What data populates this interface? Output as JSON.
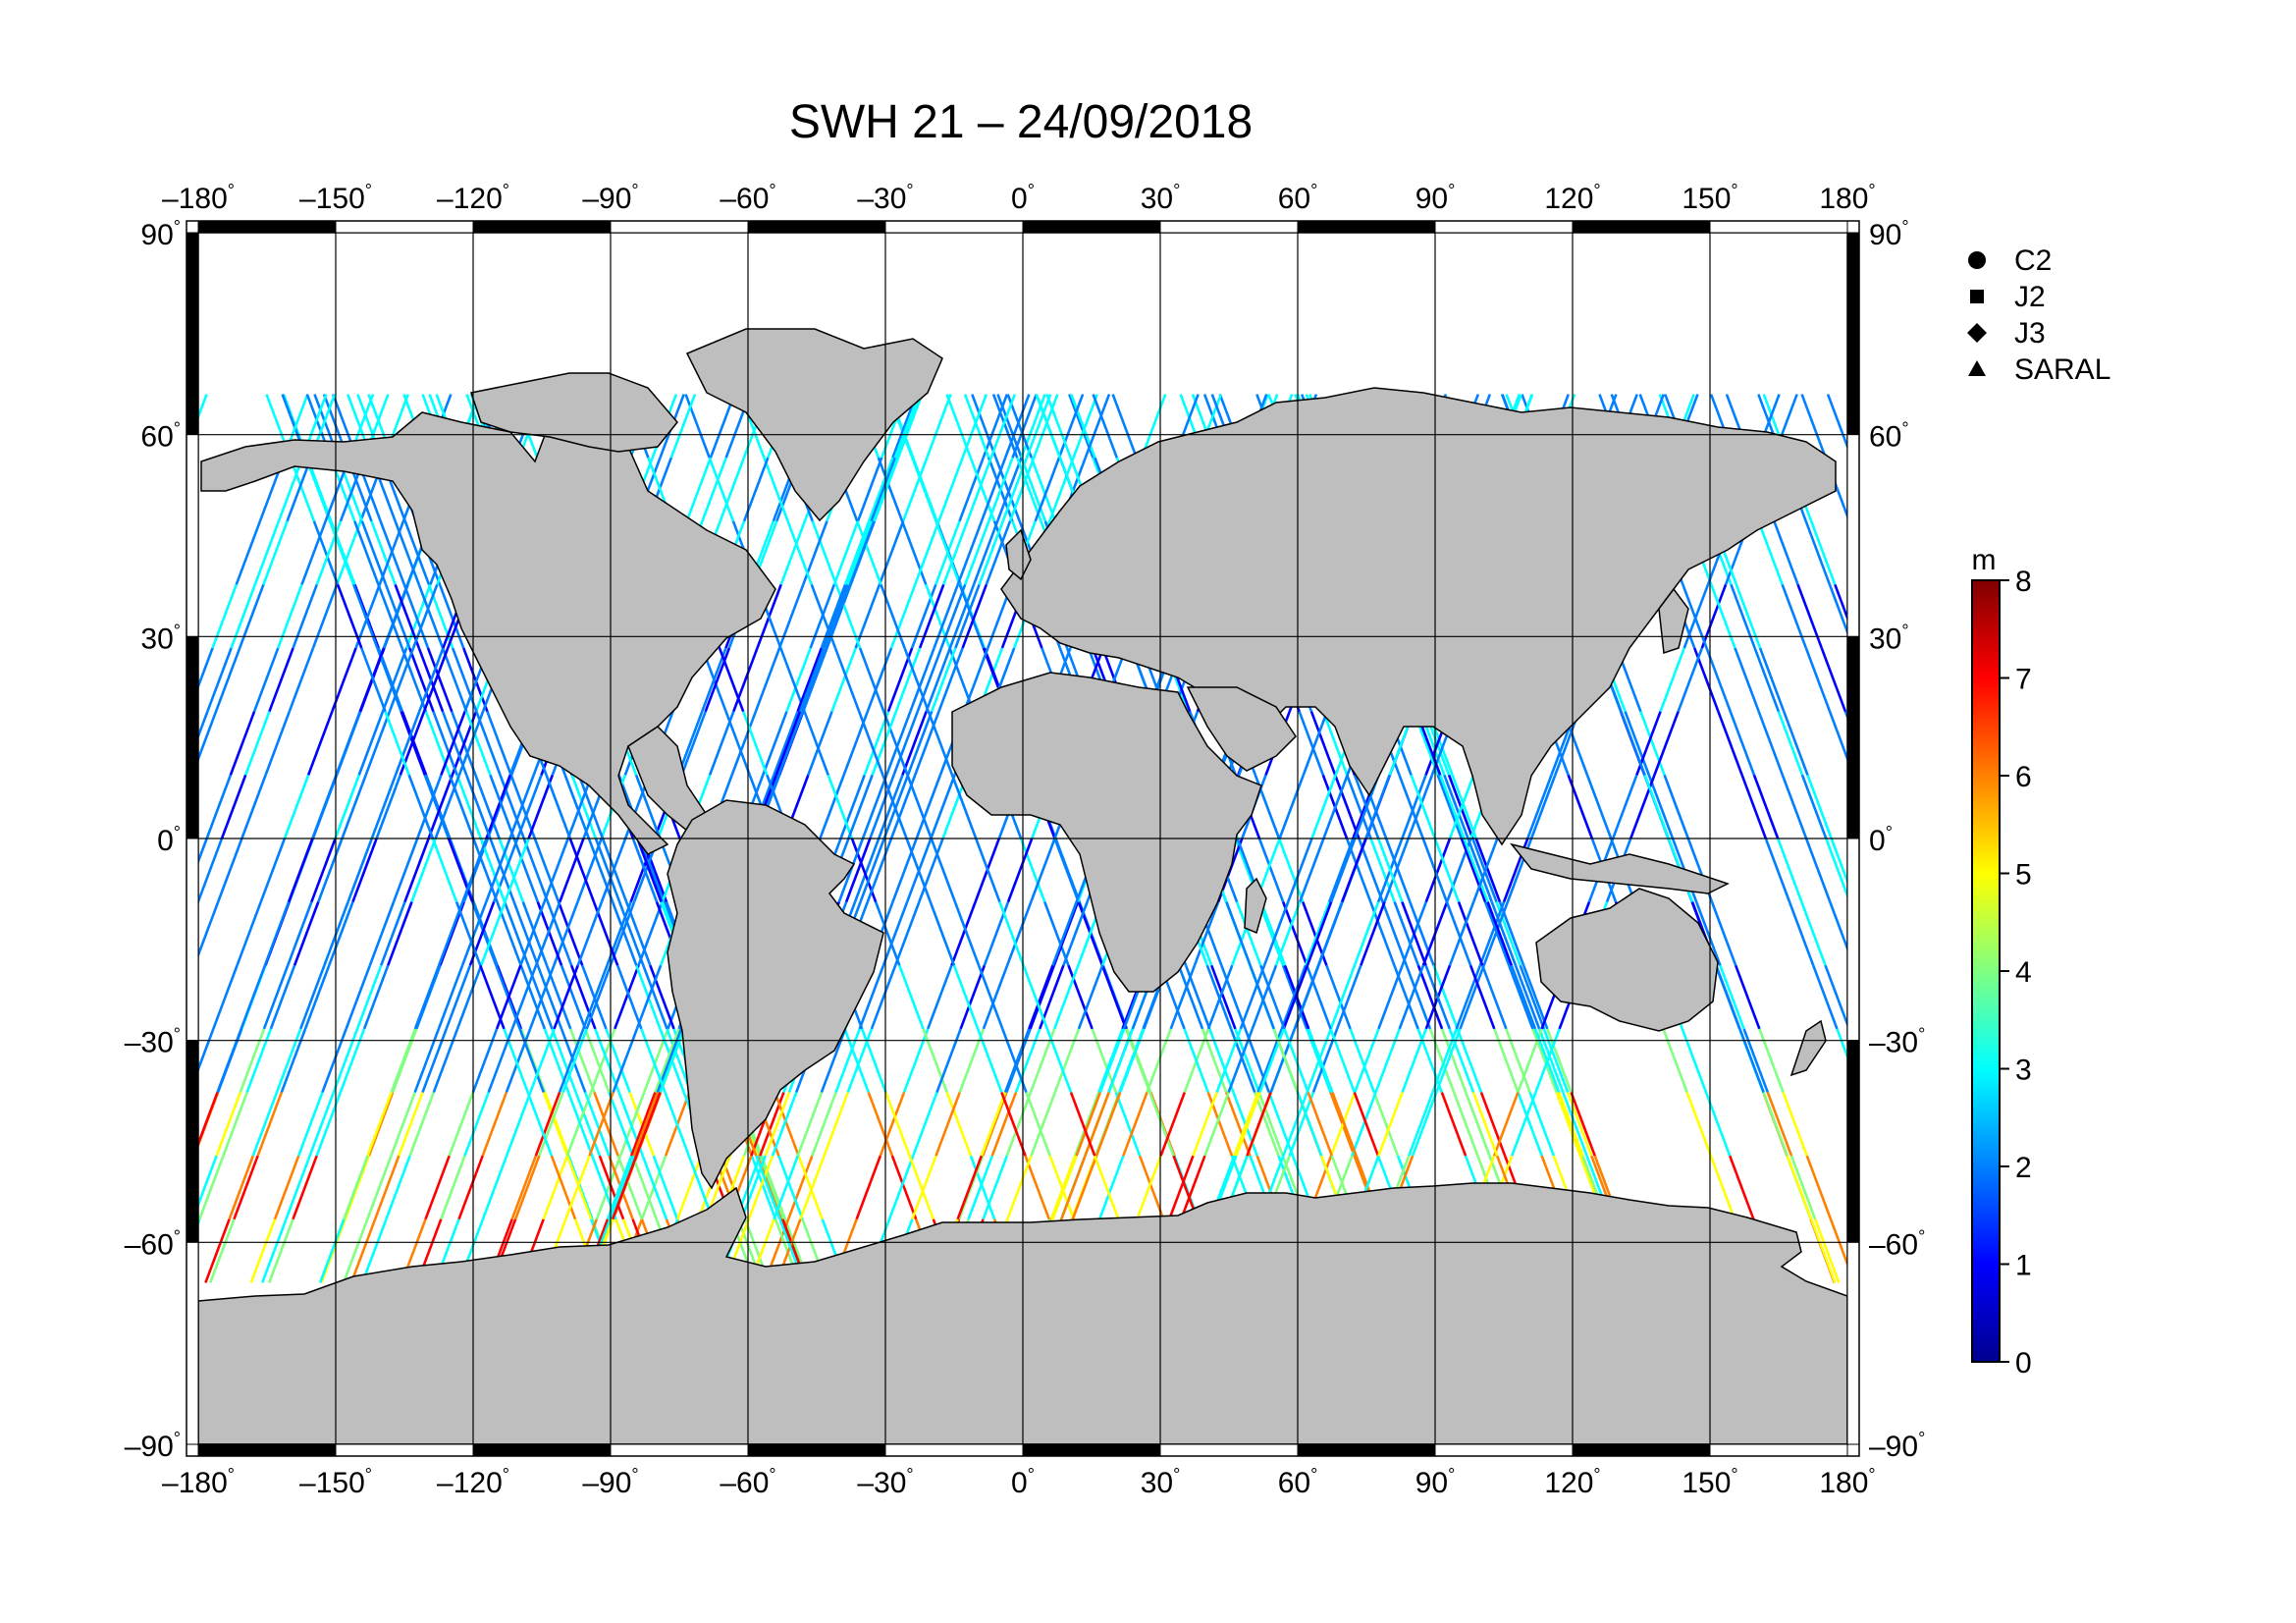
{
  "title": "SWH 21 – 24/09/2018",
  "map": {
    "projection": "equirectangular",
    "lon_range": [
      -180,
      180
    ],
    "lat_range": [
      -90,
      90
    ],
    "graticule_step_deg": 30,
    "lon_ticks": [
      {
        "value": -180,
        "label": "–180"
      },
      {
        "value": -150,
        "label": "–150"
      },
      {
        "value": -120,
        "label": "–120"
      },
      {
        "value": -90,
        "label": "–90"
      },
      {
        "value": -60,
        "label": "–60"
      },
      {
        "value": -30,
        "label": "–30"
      },
      {
        "value": 0,
        "label": "0"
      },
      {
        "value": 30,
        "label": "30"
      },
      {
        "value": 60,
        "label": "60"
      },
      {
        "value": 90,
        "label": "90"
      },
      {
        "value": 120,
        "label": "120"
      },
      {
        "value": 150,
        "label": "150"
      },
      {
        "value": 180,
        "label": "180"
      }
    ],
    "lat_ticks": [
      {
        "value": 90,
        "label": "90"
      },
      {
        "value": 60,
        "label": "60"
      },
      {
        "value": 30,
        "label": "30"
      },
      {
        "value": 0,
        "label": "0"
      },
      {
        "value": -30,
        "label": "–30"
      },
      {
        "value": -60,
        "label": "–60"
      },
      {
        "value": -90,
        "label": "–90"
      }
    ],
    "degree_mark": "°",
    "land_color": "#bebebe",
    "ocean_color": "#ffffff"
  },
  "legend": [
    {
      "symbol": "circle",
      "label": "C2"
    },
    {
      "symbol": "square",
      "label": "J2"
    },
    {
      "symbol": "diamond",
      "label": "J3"
    },
    {
      "symbol": "triangle",
      "label": "SARAL"
    }
  ],
  "colorbar": {
    "unit": "m",
    "min": 0,
    "max": 8,
    "ticks": [
      {
        "value": 8,
        "label": "8"
      },
      {
        "value": 7,
        "label": "7"
      },
      {
        "value": 6,
        "label": "6"
      },
      {
        "value": 5,
        "label": "5"
      },
      {
        "value": 4,
        "label": "4"
      },
      {
        "value": 3,
        "label": "3"
      },
      {
        "value": 2,
        "label": "2"
      },
      {
        "value": 1,
        "label": "1"
      },
      {
        "value": 0,
        "label": "0"
      }
    ],
    "colors": [
      "#00008f",
      "#0000ff",
      "#0080ff",
      "#00ffff",
      "#80ff80",
      "#ffff00",
      "#ff8000",
      "#ff0000",
      "#800000"
    ]
  }
}
